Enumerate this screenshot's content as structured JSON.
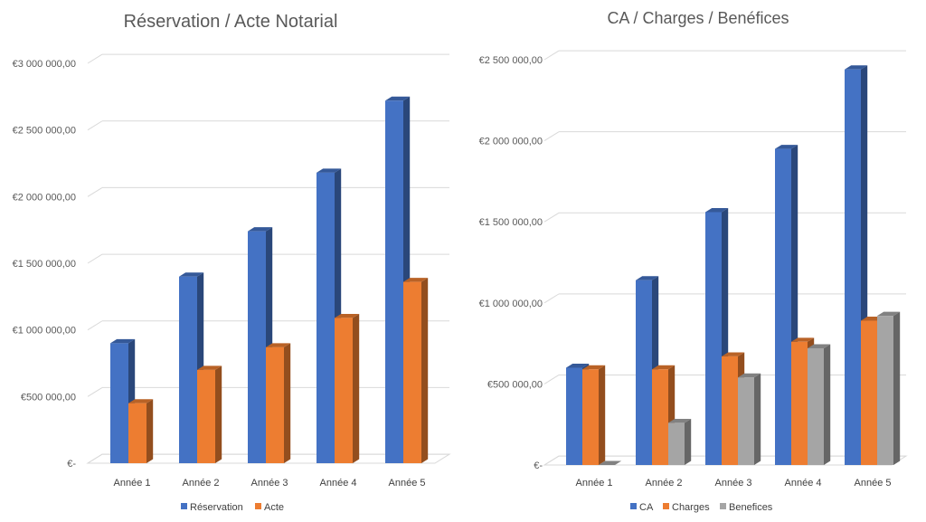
{
  "chart_data": [
    {
      "type": "bar",
      "title": "Réservation / Acte Notarial",
      "categories": [
        "Année 1",
        "Année 2",
        "Année 3",
        "Année 4",
        "Année 5"
      ],
      "ylim": [
        0,
        3000000
      ],
      "ytick_values": [
        0,
        500000,
        1000000,
        1500000,
        2000000,
        2500000,
        3000000
      ],
      "ytick_labels": [
        "€-",
        "€500 000,00",
        "€1 000 000,00",
        "€1 500 000,00",
        "€2 000 000,00",
        "€2 500 000,00",
        "€3 000 000,00"
      ],
      "grid": true,
      "legend_position": "bottom",
      "series": [
        {
          "name": "Réservation",
          "color": "#4472C4",
          "values": [
            900000,
            1400000,
            1740000,
            2180000,
            2720000
          ]
        },
        {
          "name": "Acte",
          "color": "#ED7D31",
          "values": [
            450000,
            700000,
            870000,
            1090000,
            1360000
          ]
        }
      ]
    },
    {
      "type": "bar",
      "title": "CA / Charges / Benéfices",
      "categories": [
        "Année 1",
        "Année 2",
        "Année 3",
        "Année 4",
        "Année 5"
      ],
      "ylim": [
        0,
        2500000
      ],
      "ytick_values": [
        0,
        500000,
        1000000,
        1500000,
        2000000,
        2500000
      ],
      "ytick_labels": [
        "€-",
        "€500 000,00",
        "€1 000 000,00",
        "€1 500 000,00",
        "€2 000 000,00",
        "€2 500 000,00"
      ],
      "grid": true,
      "legend_position": "bottom",
      "series": [
        {
          "name": "CA",
          "color": "#4472C4",
          "values": [
            600000,
            1140000,
            1560000,
            1950000,
            2440000
          ]
        },
        {
          "name": "Charges",
          "color": "#ED7D31",
          "values": [
            590000,
            590000,
            670000,
            760000,
            890000
          ]
        },
        {
          "name": "Benefices",
          "color": "#A5A5A5",
          "values": [
            0,
            260000,
            540000,
            720000,
            920000
          ]
        }
      ]
    }
  ]
}
